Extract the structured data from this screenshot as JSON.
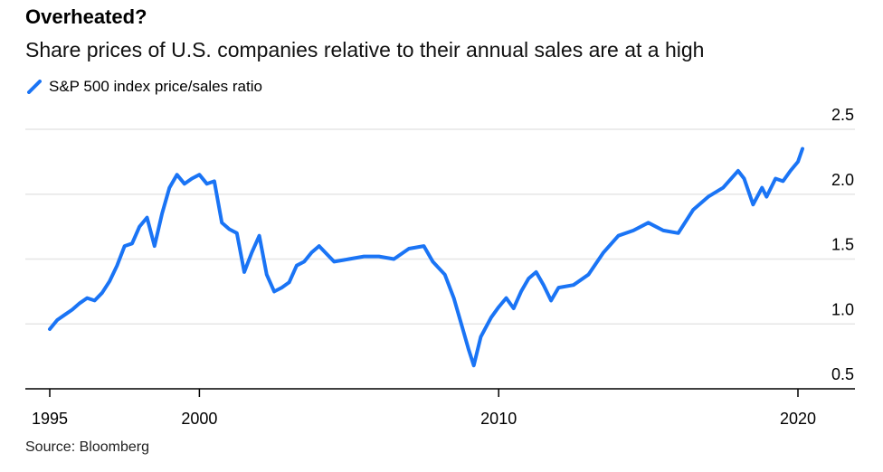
{
  "chart_data": {
    "type": "line",
    "title": "Overheated?",
    "subtitle": "Share prices of U.S. companies relative to their annual sales are at a high",
    "source": "Source: Bloomberg",
    "xlabel": "",
    "ylabel": "",
    "xlim": [
      1995,
      2020.6
    ],
    "ylim": [
      0.5,
      2.5
    ],
    "yticks": [
      "0.5",
      "1.0",
      "1.5",
      "2.0",
      "2.5"
    ],
    "xticks": [
      "1995",
      "2000",
      "2010",
      "2020"
    ],
    "grid": true,
    "legend_position": "top-left",
    "colors": {
      "series": "#1a74f5",
      "grid": "#e6e6e6",
      "axis": "#000000"
    },
    "series": [
      {
        "name": "S&P 500 index price/sales ratio",
        "x": [
          1995.0,
          1995.25,
          1995.5,
          1995.75,
          1996.0,
          1996.25,
          1996.5,
          1996.75,
          1997.0,
          1997.25,
          1997.5,
          1997.75,
          1998.0,
          1998.25,
          1998.5,
          1998.75,
          1999.0,
          1999.25,
          1999.5,
          1999.75,
          2000.0,
          2000.25,
          2000.5,
          2000.75,
          2001.0,
          2001.25,
          2001.5,
          2001.75,
          2002.0,
          2002.25,
          2002.5,
          2002.75,
          2003.0,
          2003.25,
          2003.5,
          2003.75,
          2004.0,
          2004.5,
          2005.0,
          2005.5,
          2006.0,
          2006.5,
          2007.0,
          2007.5,
          2007.8,
          2008.2,
          2008.5,
          2008.75,
          2009.0,
          2009.17,
          2009.4,
          2009.75,
          2010.0,
          2010.25,
          2010.5,
          2010.75,
          2011.0,
          2011.25,
          2011.5,
          2011.75,
          2012.0,
          2012.5,
          2013.0,
          2013.5,
          2014.0,
          2014.5,
          2015.0,
          2015.5,
          2016.0,
          2016.5,
          2017.0,
          2017.5,
          2018.0,
          2018.2,
          2018.5,
          2018.8,
          2018.95,
          2019.25,
          2019.5,
          2019.75,
          2020.0,
          2020.15
        ],
        "values": [
          0.96,
          1.03,
          1.07,
          1.11,
          1.16,
          1.2,
          1.18,
          1.24,
          1.33,
          1.45,
          1.6,
          1.62,
          1.75,
          1.82,
          1.6,
          1.85,
          2.05,
          2.15,
          2.08,
          2.12,
          2.15,
          2.08,
          2.1,
          1.78,
          1.73,
          1.7,
          1.4,
          1.55,
          1.68,
          1.38,
          1.25,
          1.28,
          1.32,
          1.45,
          1.48,
          1.55,
          1.6,
          1.48,
          1.5,
          1.52,
          1.52,
          1.5,
          1.58,
          1.6,
          1.48,
          1.38,
          1.2,
          1.0,
          0.8,
          0.68,
          0.9,
          1.05,
          1.13,
          1.2,
          1.12,
          1.25,
          1.35,
          1.4,
          1.3,
          1.18,
          1.28,
          1.3,
          1.38,
          1.55,
          1.68,
          1.72,
          1.78,
          1.72,
          1.7,
          1.88,
          1.98,
          2.05,
          2.18,
          2.12,
          1.92,
          2.05,
          1.98,
          2.12,
          2.1,
          2.18,
          2.25,
          2.35
        ]
      }
    ]
  }
}
